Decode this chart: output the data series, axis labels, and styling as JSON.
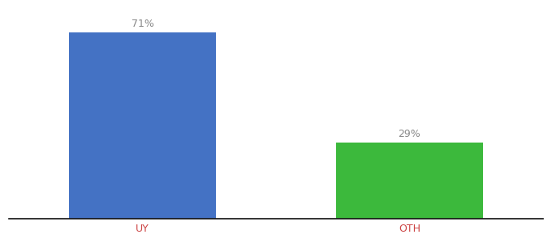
{
  "categories": [
    "UY",
    "OTH"
  ],
  "values": [
    71,
    29
  ],
  "bar_colors": [
    "#4472C4",
    "#3CB93C"
  ],
  "value_labels": [
    "71%",
    "29%"
  ],
  "background_color": "#ffffff",
  "label_color": "#888888",
  "label_fontsize": 9,
  "tick_label_color": "#cc4444",
  "tick_fontsize": 9,
  "ylim": [
    0,
    80
  ],
  "bar_width": 0.55,
  "xlim": [
    -0.5,
    1.5
  ]
}
